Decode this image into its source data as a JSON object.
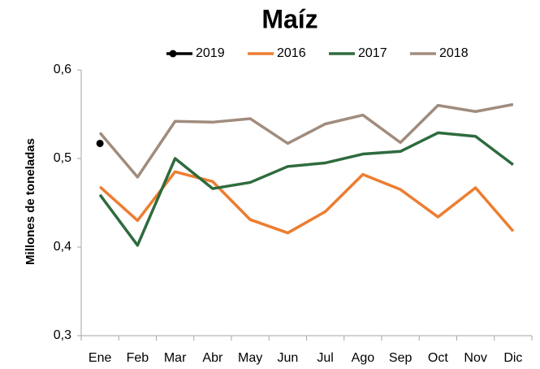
{
  "chart_data": {
    "type": "line",
    "title": "Maíz",
    "y_label": "Millones de toneladas",
    "categories": [
      "Ene",
      "Feb",
      "Mar",
      "Abr",
      "May",
      "Jun",
      "Jul",
      "Ago",
      "Sep",
      "Oct",
      "Nov",
      "Dic"
    ],
    "series": [
      {
        "name": "2019",
        "color": "#000000",
        "marker": "circle",
        "values": [
          0.517,
          null,
          null,
          null,
          null,
          null,
          null,
          null,
          null,
          null,
          null,
          null
        ]
      },
      {
        "name": "2016",
        "color": "#ed7d31",
        "values": [
          0.468,
          0.43,
          0.485,
          0.474,
          0.431,
          0.416,
          0.44,
          0.482,
          0.465,
          0.434,
          0.467,
          0.418
        ]
      },
      {
        "name": "2017",
        "color": "#2e6b3e",
        "values": [
          0.459,
          0.402,
          0.5,
          0.466,
          0.473,
          0.491,
          0.495,
          0.505,
          0.508,
          0.529,
          0.525,
          0.493
        ]
      },
      {
        "name": "2018",
        "color": "#a08c7d",
        "values": [
          0.529,
          0.479,
          0.542,
          0.541,
          0.545,
          0.517,
          0.539,
          0.549,
          0.518,
          0.56,
          0.553,
          0.561
        ]
      }
    ],
    "ylim": [
      0.3,
      0.6
    ],
    "yticks": [
      {
        "value": 0.3,
        "label": "0,3"
      },
      {
        "value": 0.4,
        "label": "0,4"
      },
      {
        "value": 0.5,
        "label": "0,5"
      },
      {
        "value": 0.6,
        "label": "0,6"
      }
    ],
    "grid": false,
    "legend": "top"
  }
}
